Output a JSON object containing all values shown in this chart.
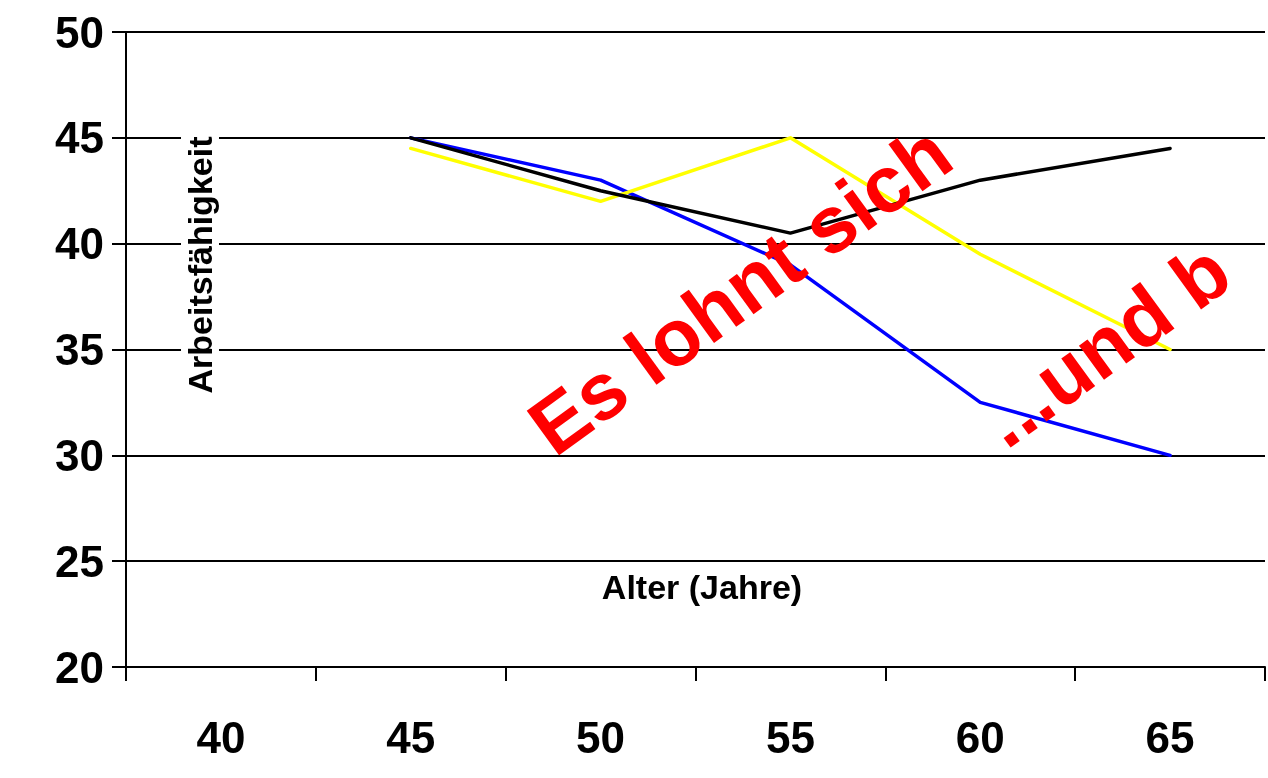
{
  "chart_data": {
    "type": "line",
    "xlabel": "Alter (Jahre)",
    "ylabel": "Arbeitsfähigkeit",
    "categories": [
      "40",
      "45",
      "50",
      "55",
      "60",
      "65"
    ],
    "series": [
      {
        "color": "#0000ff",
        "values": [
          null,
          45,
          43,
          39,
          32.5,
          30
        ]
      },
      {
        "color": "#ffff00",
        "values": [
          null,
          44.5,
          42,
          45,
          39.5,
          35
        ]
      },
      {
        "color": "#000000",
        "values": [
          null,
          45,
          42.5,
          40.5,
          43,
          44.5
        ]
      }
    ],
    "ylim": [
      20,
      50
    ],
    "yticks": [
      20,
      25,
      30,
      35,
      40,
      45,
      50
    ],
    "grid": "y",
    "marker": "none",
    "line_style": "solid",
    "annotations": [
      "Es lohnt sich",
      "...und b"
    ]
  }
}
